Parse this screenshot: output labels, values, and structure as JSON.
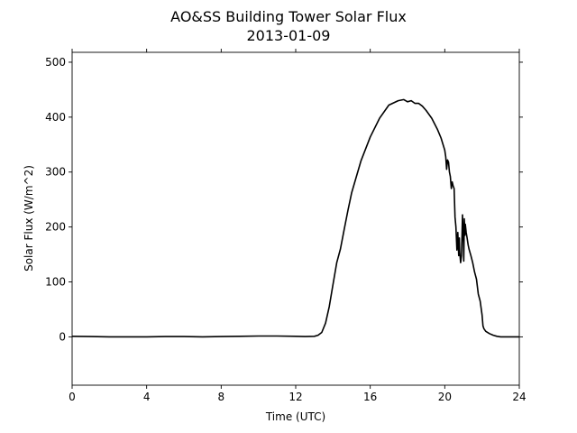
{
  "chart_data": {
    "type": "line",
    "title": "AO&SS Building Tower Solar Flux",
    "subtitle": "2013-01-09",
    "xlabel": "Time (UTC)",
    "ylabel": "Solar Flux (W/m^2)",
    "xlim": [
      0,
      24
    ],
    "ylim": [
      -88,
      518
    ],
    "xticks": [
      0,
      4,
      8,
      12,
      16,
      20,
      24
    ],
    "yticks": [
      0,
      100,
      200,
      300,
      400,
      500
    ],
    "grid": false,
    "legend": "none",
    "series": [
      {
        "color": "#000000",
        "x": [
          0,
          1,
          2,
          3,
          4,
          5,
          6,
          7,
          8,
          9,
          10,
          11,
          12,
          12.5,
          13.0,
          13.2,
          13.4,
          13.6,
          13.8,
          14.0,
          14.2,
          14.4,
          14.6,
          14.8,
          15.0,
          15.5,
          16.0,
          16.5,
          17.0,
          17.5,
          17.8,
          18.0,
          18.2,
          18.4,
          18.6,
          18.8,
          19.0,
          19.3,
          19.6,
          19.8,
          20.0,
          20.05,
          20.1,
          20.15,
          20.2,
          20.25,
          20.3,
          20.35,
          20.4,
          20.45,
          20.5,
          20.55,
          20.6,
          20.65,
          20.7,
          20.72,
          20.75,
          20.78,
          20.8,
          20.85,
          20.9,
          20.95,
          21.0,
          21.02,
          21.05,
          21.08,
          21.1,
          21.15,
          21.2,
          21.25,
          21.3,
          21.4,
          21.5,
          21.6,
          21.7,
          21.8,
          21.9,
          22.0,
          22.05,
          22.1,
          22.2,
          22.4,
          22.6,
          22.8,
          23.0,
          23.5,
          24.0
        ],
        "y": [
          1,
          0.5,
          0,
          0,
          0,
          0.5,
          0.5,
          0,
          0.5,
          1,
          1.5,
          1.5,
          1,
          0.5,
          1,
          3,
          8,
          25,
          55,
          95,
          135,
          160,
          195,
          230,
          262,
          320,
          364,
          398,
          422,
          430,
          432,
          428,
          430,
          425,
          425,
          420,
          412,
          398,
          378,
          362,
          340,
          328,
          305,
          322,
          318,
          300,
          292,
          270,
          282,
          275,
          270,
          218,
          200,
          158,
          190,
          172,
          148,
          180,
          155,
          135,
          148,
          222,
          172,
          138,
          215,
          185,
          205,
          190,
          180,
          168,
          160,
          148,
          135,
          118,
          105,
          78,
          65,
          40,
          20,
          15,
          10,
          6,
          3,
          1,
          0,
          0,
          0
        ]
      }
    ]
  }
}
